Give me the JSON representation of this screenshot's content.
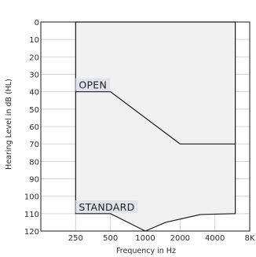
{
  "chart_data": {
    "type": "area",
    "xlabel": "Frequency in Hz",
    "ylabel": "Hearing Level in dB (HL)",
    "x_ticks": [
      {
        "value": 250,
        "label": "250"
      },
      {
        "value": 500,
        "label": "500"
      },
      {
        "value": 1000,
        "label": "1000"
      },
      {
        "value": 2000,
        "label": "2000"
      },
      {
        "value": 4000,
        "label": "4000"
      },
      {
        "value": 8000,
        "label": "8K"
      }
    ],
    "x_scale": "log",
    "xlim": [
      125,
      8000
    ],
    "ylim": [
      0,
      120
    ],
    "y_inverted": true,
    "y_ticks": [
      0,
      10,
      20,
      30,
      40,
      50,
      60,
      70,
      80,
      90,
      100,
      110,
      120
    ],
    "grid": true,
    "fill_color": "#f1f1f1",
    "line_color": "#1a1a1a",
    "grid_color": "#d4d4d4",
    "label_bg_color": "#e2e2ec",
    "region": {
      "top": [
        {
          "x": 250,
          "y": 0
        },
        {
          "x": 6000,
          "y": 0
        }
      ],
      "open_boundary": [
        {
          "x": 250,
          "y": 40
        },
        {
          "x": 500,
          "y": 40
        },
        {
          "x": 2000,
          "y": 70
        },
        {
          "x": 6000,
          "y": 70
        }
      ],
      "standard_boundary": [
        {
          "x": 250,
          "y": 110
        },
        {
          "x": 500,
          "y": 110
        },
        {
          "x": 1000,
          "y": 120
        },
        {
          "x": 1500,
          "y": 115
        },
        {
          "x": 3000,
          "y": 110.5
        },
        {
          "x": 6000,
          "y": 110
        }
      ]
    },
    "labels": [
      {
        "text": "OPEN",
        "x": 250,
        "y": 40
      },
      {
        "text": "STANDARD",
        "x": 250,
        "y": 110
      }
    ]
  }
}
